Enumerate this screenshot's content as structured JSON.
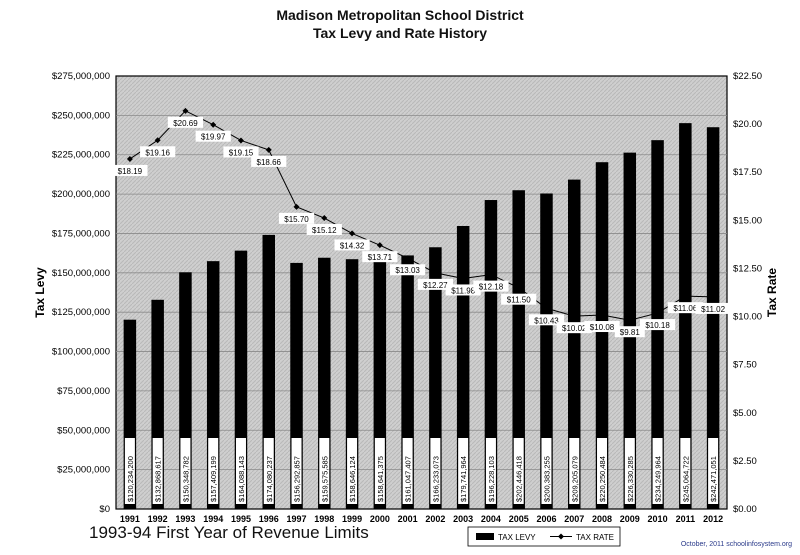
{
  "chart_data": {
    "type": "bar",
    "title": "Madison Metropolitan School District",
    "subtitle": "Tax Levy and Rate History",
    "caption": "1993-94 First Year of Revenue Limits",
    "footer": "October, 2011 schoolinfosystem.org",
    "categories": [
      "1991",
      "1992",
      "1993",
      "1994",
      "1995",
      "1996",
      "1997",
      "1998",
      "1999",
      "2000",
      "2001",
      "2002",
      "2003",
      "2004",
      "2005",
      "2006",
      "2007",
      "2008",
      "2009",
      "2010",
      "2011",
      "2012"
    ],
    "series": [
      {
        "name": "TAX LEVY",
        "axis": "left",
        "type": "bar",
        "values": [
          120234200,
          132868617,
          150348782,
          157409199,
          164088143,
          174080237,
          156292857,
          159575585,
          158646124,
          158641375,
          161047407,
          166233073,
          179741964,
          196228103,
          202446418,
          200383255,
          209205079,
          220250484,
          226330285,
          234249964,
          245064722,
          242471051
        ],
        "labels": [
          "$120,234,200",
          "$132,868,617",
          "$150,348,782",
          "$157,409,199",
          "$164,088,143",
          "$174,080,237",
          "$156,292,857",
          "$159,575,585",
          "$158,646,124",
          "$158,641,375",
          "$161,047,407",
          "$166,233,073",
          "$179,741,964",
          "$196,228,103",
          "$202,446,418",
          "$200,383,255",
          "$209,205,079",
          "$220,250,484",
          "$226,330,285",
          "$234,249,964",
          "$245,064,722",
          "$242,471,051"
        ]
      },
      {
        "name": "TAX RATE",
        "axis": "right",
        "type": "line",
        "values": [
          18.19,
          19.16,
          20.69,
          19.97,
          19.15,
          18.66,
          15.7,
          15.12,
          14.32,
          13.71,
          13.03,
          12.27,
          11.98,
          12.18,
          11.5,
          10.43,
          10.02,
          10.08,
          9.81,
          10.18,
          11.06,
          11.02
        ],
        "labels": [
          "$18.19",
          "$19.16",
          "$20.69",
          "$19.97",
          "$19.15",
          "$18.66",
          "$15.70",
          "$15.12",
          "$14.32",
          "$13.71",
          "$13.03",
          "$12.27",
          "$11.98",
          "$12.18",
          "$11.50",
          "$10.43",
          "$10.02",
          "$10.08",
          "$9.81",
          "$10.18",
          "$11.06",
          "$11.02"
        ]
      }
    ],
    "ylabel": "Tax Levy",
    "ylabel_right": "Tax Rate",
    "ylim": [
      0,
      275000000
    ],
    "ylim_right": [
      0,
      22.5
    ],
    "yticks": [
      "$0",
      "$25,000,000",
      "$50,000,000",
      "$75,000,000",
      "$100,000,000",
      "$125,000,000",
      "$150,000,000",
      "$175,000,000",
      "$200,000,000",
      "$225,000,000",
      "$250,000,000",
      "$275,000,000"
    ],
    "yticks_right": [
      "$0.00",
      "$2.50",
      "$5.00",
      "$7.50",
      "$10.00",
      "$12.50",
      "$15.00",
      "$17.50",
      "$20.00",
      "$22.50"
    ],
    "grid": true,
    "legend_position": "bottom-center",
    "colors": {
      "bar": "#000000",
      "line": "#000000",
      "plot_bg": "#cfcfcf",
      "label_box": "#ffffff"
    }
  }
}
